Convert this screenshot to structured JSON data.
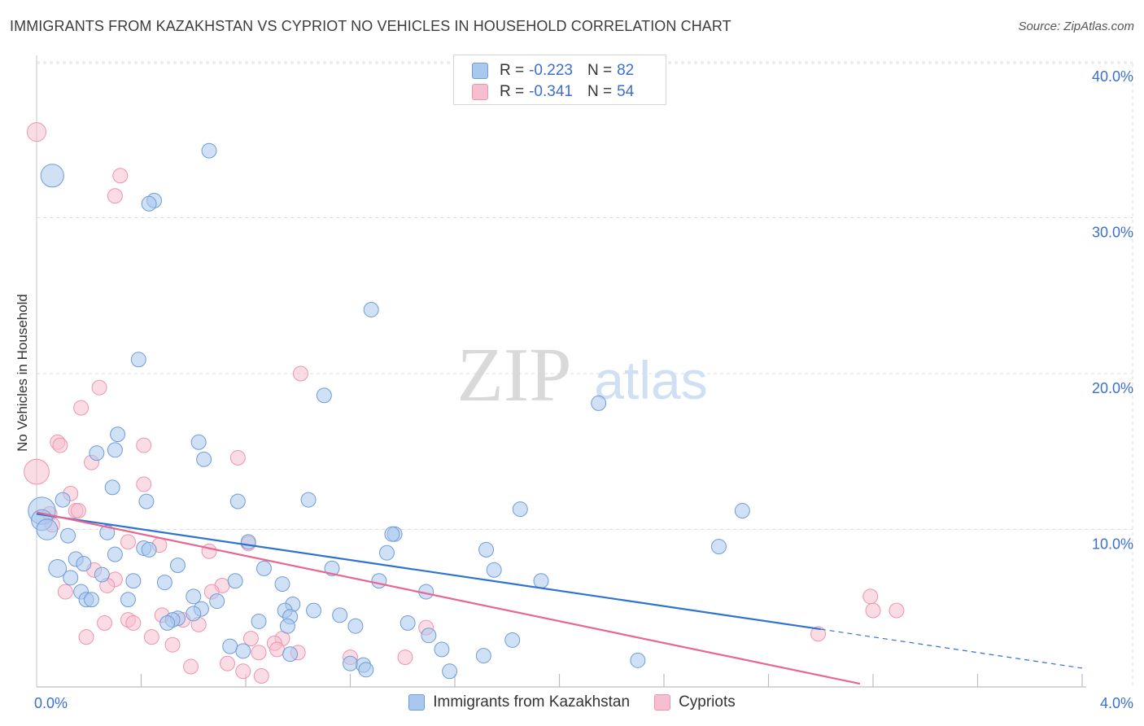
{
  "title": "IMMIGRANTS FROM KAZAKHSTAN VS CYPRIOT NO VEHICLES IN HOUSEHOLD CORRELATION CHART",
  "source": "Source: ZipAtlas.com",
  "watermark": {
    "zip": "ZIP",
    "atlas": "atlas"
  },
  "legend": {
    "rows": [
      {
        "r_label": "R =",
        "r_value": "-0.223",
        "n_label": "N =",
        "n_value": "82"
      },
      {
        "r_label": "R =",
        "r_value": "-0.341",
        "n_label": "N =",
        "n_value": "54"
      }
    ]
  },
  "colors": {
    "blue_fill": "#a9c8ef",
    "blue_stroke": "#6f9bd8",
    "blue_line": "#2f73d0",
    "pink_fill": "#f6bfd0",
    "pink_stroke": "#ee93ae",
    "pink_line": "#e9668f",
    "tick_text": "#3a6fd0",
    "grid": "#dcdcdc"
  },
  "chart_data": {
    "type": "scatter",
    "title": "IMMIGRANTS FROM KAZAKHSTAN VS CYPRIOT NO VEHICLES IN HOUSEHOLD CORRELATION CHART",
    "xlabel": "",
    "ylabel": "No Vehicles in Household",
    "xlim": [
      0,
      4
    ],
    "ylim": [
      0,
      40
    ],
    "x_tick_labels": [
      "0.0%",
      "4.0%"
    ],
    "y_ticks": [
      10,
      20,
      30,
      40
    ],
    "y_tick_labels": [
      "10.0%",
      "20.0%",
      "30.0%",
      "40.0%"
    ],
    "grid": true,
    "legend_position": "top-center",
    "series": [
      {
        "name": "Immigrants from Kazakhstan",
        "color": "blue",
        "trend": {
          "x": [
            0,
            3.0
          ],
          "y": [
            11.0,
            3.6
          ],
          "dashed_to": [
            4.0,
            1.1
          ]
        },
        "points": [
          [
            0.06,
            32.7,
            2.2
          ],
          [
            0.66,
            34.3,
            1.4
          ],
          [
            0.45,
            31.1,
            1.4
          ],
          [
            0.43,
            30.9,
            1.4
          ],
          [
            1.28,
            24.1,
            1.4
          ],
          [
            0.39,
            20.9,
            1.4
          ],
          [
            1.1,
            18.6,
            1.4
          ],
          [
            2.15,
            18.1,
            1.4
          ],
          [
            0.31,
            16.1,
            1.4
          ],
          [
            0.62,
            15.6,
            1.4
          ],
          [
            0.3,
            15.1,
            1.4
          ],
          [
            0.23,
            14.9,
            1.4
          ],
          [
            0.64,
            14.5,
            1.4
          ],
          [
            0.29,
            12.7,
            1.4
          ],
          [
            0.42,
            11.8,
            1.4
          ],
          [
            0.77,
            11.8,
            1.4
          ],
          [
            1.04,
            11.9,
            1.4
          ],
          [
            0.1,
            11.9,
            1.4
          ],
          [
            1.85,
            11.3,
            1.4
          ],
          [
            2.7,
            11.2,
            1.4
          ],
          [
            0.02,
            11.2,
            2.6
          ],
          [
            0.02,
            10.6,
            2.0
          ],
          [
            0.04,
            10.0,
            2.0
          ],
          [
            0.12,
            9.6,
            1.4
          ],
          [
            0.27,
            9.8,
            1.4
          ],
          [
            0.81,
            9.2,
            1.4
          ],
          [
            1.37,
            9.7,
            1.4
          ],
          [
            1.36,
            9.7,
            1.4
          ],
          [
            2.61,
            8.9,
            1.4
          ],
          [
            0.41,
            8.8,
            1.4
          ],
          [
            0.43,
            8.7,
            1.4
          ],
          [
            1.34,
            8.5,
            1.4
          ],
          [
            1.72,
            8.7,
            1.4
          ],
          [
            0.3,
            8.4,
            1.4
          ],
          [
            0.15,
            8.1,
            1.4
          ],
          [
            0.18,
            7.8,
            1.4
          ],
          [
            0.54,
            7.7,
            1.4
          ],
          [
            0.08,
            7.5,
            1.7
          ],
          [
            0.87,
            7.5,
            1.4
          ],
          [
            1.13,
            7.5,
            1.4
          ],
          [
            1.75,
            7.4,
            1.4
          ],
          [
            0.25,
            7.1,
            1.4
          ],
          [
            0.13,
            6.9,
            1.4
          ],
          [
            0.37,
            6.7,
            1.4
          ],
          [
            0.49,
            6.6,
            1.4
          ],
          [
            0.76,
            6.7,
            1.4
          ],
          [
            0.94,
            6.5,
            1.4
          ],
          [
            1.31,
            6.7,
            1.4
          ],
          [
            1.93,
            6.7,
            1.4
          ],
          [
            0.17,
            6.0,
            1.4
          ],
          [
            1.49,
            6.0,
            1.4
          ],
          [
            0.19,
            5.5,
            1.4
          ],
          [
            0.21,
            5.5,
            1.4
          ],
          [
            0.35,
            5.5,
            1.4
          ],
          [
            0.6,
            5.7,
            1.4
          ],
          [
            0.69,
            5.4,
            1.4
          ],
          [
            0.98,
            5.2,
            1.4
          ],
          [
            0.63,
            4.9,
            1.4
          ],
          [
            0.95,
            4.8,
            1.4
          ],
          [
            1.06,
            4.8,
            1.4
          ],
          [
            0.97,
            4.4,
            1.4
          ],
          [
            0.6,
            4.6,
            1.4
          ],
          [
            1.16,
            4.5,
            1.4
          ],
          [
            0.54,
            4.3,
            1.4
          ],
          [
            0.52,
            4.2,
            1.4
          ],
          [
            0.5,
            4.0,
            1.4
          ],
          [
            0.85,
            4.1,
            1.4
          ],
          [
            0.96,
            3.8,
            1.4
          ],
          [
            1.22,
            3.8,
            1.4
          ],
          [
            1.42,
            4.0,
            1.4
          ],
          [
            1.5,
            3.2,
            1.4
          ],
          [
            1.82,
            2.9,
            1.4
          ],
          [
            0.74,
            2.5,
            1.4
          ],
          [
            0.79,
            2.2,
            1.4
          ],
          [
            0.97,
            2.0,
            1.4
          ],
          [
            1.55,
            2.3,
            1.4
          ],
          [
            1.71,
            1.9,
            1.4
          ],
          [
            1.2,
            1.4,
            1.4
          ],
          [
            1.25,
            1.3,
            1.4
          ],
          [
            1.26,
            1.0,
            1.4
          ],
          [
            1.58,
            0.9,
            1.4
          ],
          [
            2.3,
            1.6,
            1.4
          ]
        ]
      },
      {
        "name": "Cypriots",
        "color": "pink",
        "trend": {
          "x": [
            0,
            3.15
          ],
          "y": [
            11.1,
            0.1
          ]
        },
        "points": [
          [
            0.0,
            35.5,
            1.8
          ],
          [
            0.32,
            32.7,
            1.4
          ],
          [
            0.3,
            31.4,
            1.4
          ],
          [
            1.01,
            20.0,
            1.4
          ],
          [
            0.24,
            19.1,
            1.4
          ],
          [
            0.17,
            17.8,
            1.4
          ],
          [
            0.08,
            15.6,
            1.4
          ],
          [
            0.09,
            15.4,
            1.4
          ],
          [
            0.41,
            15.4,
            1.4
          ],
          [
            0.77,
            14.6,
            1.4
          ],
          [
            0.21,
            14.3,
            1.4
          ],
          [
            0.0,
            13.7,
            2.4
          ],
          [
            0.41,
            12.9,
            1.4
          ],
          [
            0.13,
            12.3,
            1.4
          ],
          [
            0.15,
            11.2,
            1.4
          ],
          [
            0.05,
            11.0,
            1.4
          ],
          [
            0.16,
            11.2,
            1.4
          ],
          [
            0.06,
            10.3,
            1.4
          ],
          [
            0.35,
            9.2,
            1.4
          ],
          [
            0.81,
            9.1,
            1.4
          ],
          [
            0.47,
            9.0,
            1.4
          ],
          [
            0.66,
            8.6,
            1.4
          ],
          [
            0.22,
            7.4,
            1.4
          ],
          [
            0.3,
            6.8,
            1.4
          ],
          [
            0.27,
            6.4,
            1.4
          ],
          [
            0.71,
            6.4,
            1.4
          ],
          [
            0.67,
            6.0,
            1.4
          ],
          [
            0.11,
            6.0,
            1.4
          ],
          [
            3.19,
            5.7,
            1.4
          ],
          [
            3.2,
            4.8,
            1.4
          ],
          [
            3.29,
            4.8,
            1.4
          ],
          [
            0.48,
            4.5,
            1.4
          ],
          [
            0.56,
            4.2,
            1.4
          ],
          [
            0.35,
            4.2,
            1.4
          ],
          [
            0.26,
            4.0,
            1.4
          ],
          [
            0.37,
            4.0,
            1.4
          ],
          [
            0.62,
            3.9,
            1.4
          ],
          [
            1.49,
            3.7,
            1.4
          ],
          [
            0.82,
            3.0,
            1.4
          ],
          [
            0.94,
            3.0,
            1.4
          ],
          [
            0.19,
            3.1,
            1.4
          ],
          [
            0.44,
            3.1,
            1.4
          ],
          [
            2.99,
            3.3,
            1.4
          ],
          [
            0.91,
            2.7,
            1.4
          ],
          [
            0.92,
            2.3,
            1.4
          ],
          [
            0.52,
            2.6,
            1.4
          ],
          [
            0.85,
            2.1,
            1.4
          ],
          [
            1.0,
            2.1,
            1.4
          ],
          [
            1.2,
            1.8,
            1.4
          ],
          [
            1.41,
            1.8,
            1.4
          ],
          [
            0.73,
            1.4,
            1.4
          ],
          [
            0.59,
            1.2,
            1.4
          ],
          [
            0.79,
            0.9,
            1.4
          ],
          [
            0.86,
            0.6,
            1.4
          ]
        ]
      }
    ]
  },
  "bottom_legend": [
    "Immigrants from Kazakhstan",
    "Cypriots"
  ]
}
